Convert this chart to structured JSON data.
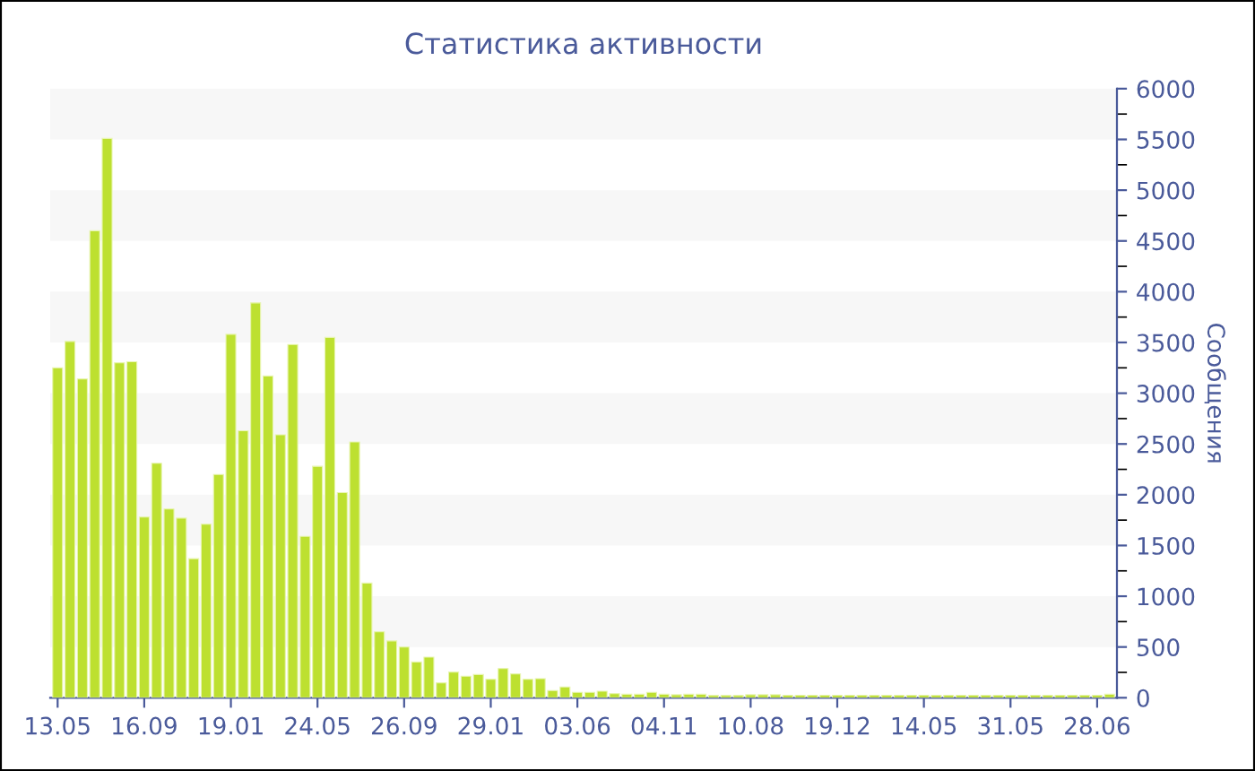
{
  "chart_data": {
    "type": "bar",
    "title": "Статистика активности",
    "ylabel": "Сообщения",
    "categories": [
      "13.05",
      null,
      null,
      null,
      null,
      null,
      null,
      "16.09",
      null,
      null,
      null,
      null,
      null,
      null,
      "19.01",
      null,
      null,
      null,
      null,
      null,
      null,
      "24.05",
      null,
      null,
      null,
      null,
      null,
      null,
      "26.09",
      null,
      null,
      null,
      null,
      null,
      null,
      "29.01",
      null,
      null,
      null,
      null,
      null,
      null,
      "03.06",
      null,
      null,
      null,
      null,
      null,
      null,
      "04.11",
      null,
      null,
      null,
      null,
      null,
      null,
      "10.08",
      null,
      null,
      null,
      null,
      null,
      null,
      "19.12",
      null,
      null,
      null,
      null,
      null,
      null,
      "14.05",
      null,
      null,
      null,
      null,
      null,
      null,
      "31.05",
      null,
      null,
      null,
      null,
      null,
      null,
      "28.06",
      null
    ],
    "values": [
      3250,
      3510,
      3140,
      4600,
      5510,
      3300,
      3310,
      1780,
      2310,
      1860,
      1770,
      1370,
      1710,
      2200,
      3580,
      2630,
      3890,
      3170,
      2590,
      3480,
      1590,
      2280,
      3550,
      2020,
      2520,
      1130,
      650,
      560,
      500,
      353,
      400,
      147,
      253,
      212,
      229,
      182,
      288,
      235,
      182,
      188,
      71,
      106,
      53,
      53,
      65,
      41,
      35,
      35,
      53,
      35,
      30,
      35,
      35,
      24,
      24,
      24,
      30,
      30,
      30,
      25,
      25,
      25,
      25,
      25,
      25,
      25,
      25,
      25,
      25,
      25,
      25,
      25,
      25,
      25,
      25,
      25,
      25,
      25,
      25,
      25,
      25,
      25,
      25,
      25,
      25,
      35
    ],
    "color": "#bde030",
    "ylim": [
      0,
      6000
    ],
    "yticks": [
      0,
      500,
      1000,
      1500,
      2000,
      2500,
      3000,
      3500,
      4000,
      4500,
      5000,
      5500,
      6000
    ],
    "bands": [
      {
        "axis": "y",
        "from": 500,
        "to": 1000,
        "color": "#f7f7f7"
      },
      {
        "axis": "y",
        "from": 1500,
        "to": 2000,
        "color": "#f7f7f7"
      },
      {
        "axis": "y",
        "from": 2500,
        "to": 3000,
        "color": "#f7f7f7"
      },
      {
        "axis": "y",
        "from": 3500,
        "to": 4000,
        "color": "#f7f7f7"
      },
      {
        "axis": "y",
        "from": 4500,
        "to": 5000,
        "color": "#f7f7f7"
      },
      {
        "axis": "y",
        "from": 5500,
        "to": 6000,
        "color": "#f7f7f7"
      }
    ]
  }
}
